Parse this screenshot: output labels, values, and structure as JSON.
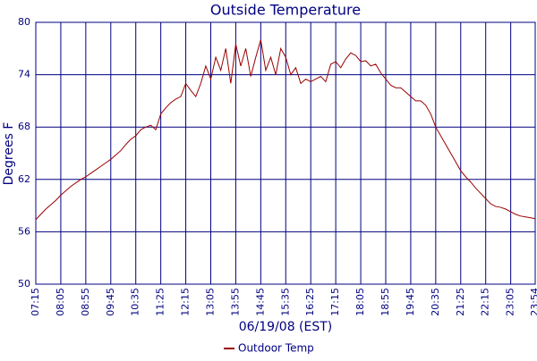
{
  "chart_data": {
    "type": "line",
    "title": "Outside Temperature",
    "x_label": "06/19/08 (EST)",
    "y_label": "Degrees F",
    "x": [
      "07:15",
      "07:25",
      "07:35",
      "07:45",
      "07:55",
      "08:05",
      "08:15",
      "08:25",
      "08:35",
      "08:45",
      "08:55",
      "09:05",
      "09:15",
      "09:25",
      "09:35",
      "09:45",
      "09:55",
      "10:05",
      "10:15",
      "10:25",
      "10:35",
      "10:45",
      "10:55",
      "11:05",
      "11:15",
      "11:25",
      "11:35",
      "11:45",
      "11:55",
      "12:05",
      "12:15",
      "12:25",
      "12:35",
      "12:45",
      "12:55",
      "13:05",
      "13:15",
      "13:25",
      "13:35",
      "13:45",
      "13:55",
      "14:05",
      "14:15",
      "14:25",
      "14:35",
      "14:45",
      "14:55",
      "15:05",
      "15:15",
      "15:25",
      "15:35",
      "15:45",
      "15:55",
      "16:05",
      "16:15",
      "16:25",
      "16:35",
      "16:45",
      "16:55",
      "17:05",
      "17:15",
      "17:25",
      "17:35",
      "17:45",
      "17:55",
      "18:05",
      "18:15",
      "18:25",
      "18:35",
      "18:45",
      "18:55",
      "19:05",
      "19:15",
      "19:25",
      "19:35",
      "19:45",
      "19:55",
      "20:05",
      "20:15",
      "20:25",
      "20:35",
      "20:45",
      "20:55",
      "21:05",
      "21:15",
      "21:25",
      "21:35",
      "21:45",
      "21:55",
      "22:05",
      "22:15",
      "22:25",
      "22:35",
      "22:45",
      "22:55",
      "23:05",
      "23:15",
      "23:25",
      "23:35",
      "23:45",
      "23:54"
    ],
    "series": [
      {
        "name": "Outdoor Temp",
        "color": "#990000",
        "values": [
          57.4,
          58.0,
          58.6,
          59.1,
          59.6,
          60.2,
          60.7,
          61.2,
          61.6,
          62.0,
          62.3,
          62.7,
          63.1,
          63.5,
          63.9,
          64.3,
          64.8,
          65.3,
          66.0,
          66.6,
          67.0,
          67.7,
          68.0,
          68.2,
          67.7,
          69.5,
          70.2,
          70.8,
          71.2,
          71.5,
          73.0,
          72.2,
          71.5,
          73.0,
          75.0,
          73.5,
          76.0,
          74.5,
          77.0,
          73.0,
          77.5,
          75.0,
          77.0,
          73.8,
          76.0,
          78.0,
          74.5,
          76.0,
          74.0,
          77.0,
          76.0,
          74.0,
          74.8,
          73.0,
          73.5,
          73.2,
          73.5,
          73.8,
          73.2,
          75.2,
          75.5,
          74.8,
          75.8,
          76.5,
          76.2,
          75.5,
          75.6,
          75.0,
          75.2,
          74.2,
          73.5,
          72.8,
          72.5,
          72.5,
          72.0,
          71.5,
          71.0,
          71.0,
          70.5,
          69.5,
          68.0,
          67.0,
          66.0,
          65.0,
          64.0,
          63.0,
          62.3,
          61.7,
          61.0,
          60.4,
          59.8,
          59.2,
          58.9,
          58.8,
          58.6,
          58.3,
          58.0,
          57.8,
          57.7,
          57.6,
          57.5
        ]
      }
    ],
    "xlim": [
      "07:15",
      "23:54"
    ],
    "xticks": [
      "07:15",
      "08:05",
      "08:55",
      "09:45",
      "10:35",
      "11:25",
      "12:15",
      "13:05",
      "13:55",
      "14:45",
      "15:35",
      "16:25",
      "17:15",
      "18:05",
      "18:55",
      "19:45",
      "20:35",
      "21:25",
      "22:15",
      "23:05",
      "23:54"
    ],
    "ylim": [
      50,
      80
    ],
    "yticks": [
      50,
      56,
      62,
      68,
      74,
      80
    ],
    "grid": true,
    "legend": "bottom"
  }
}
